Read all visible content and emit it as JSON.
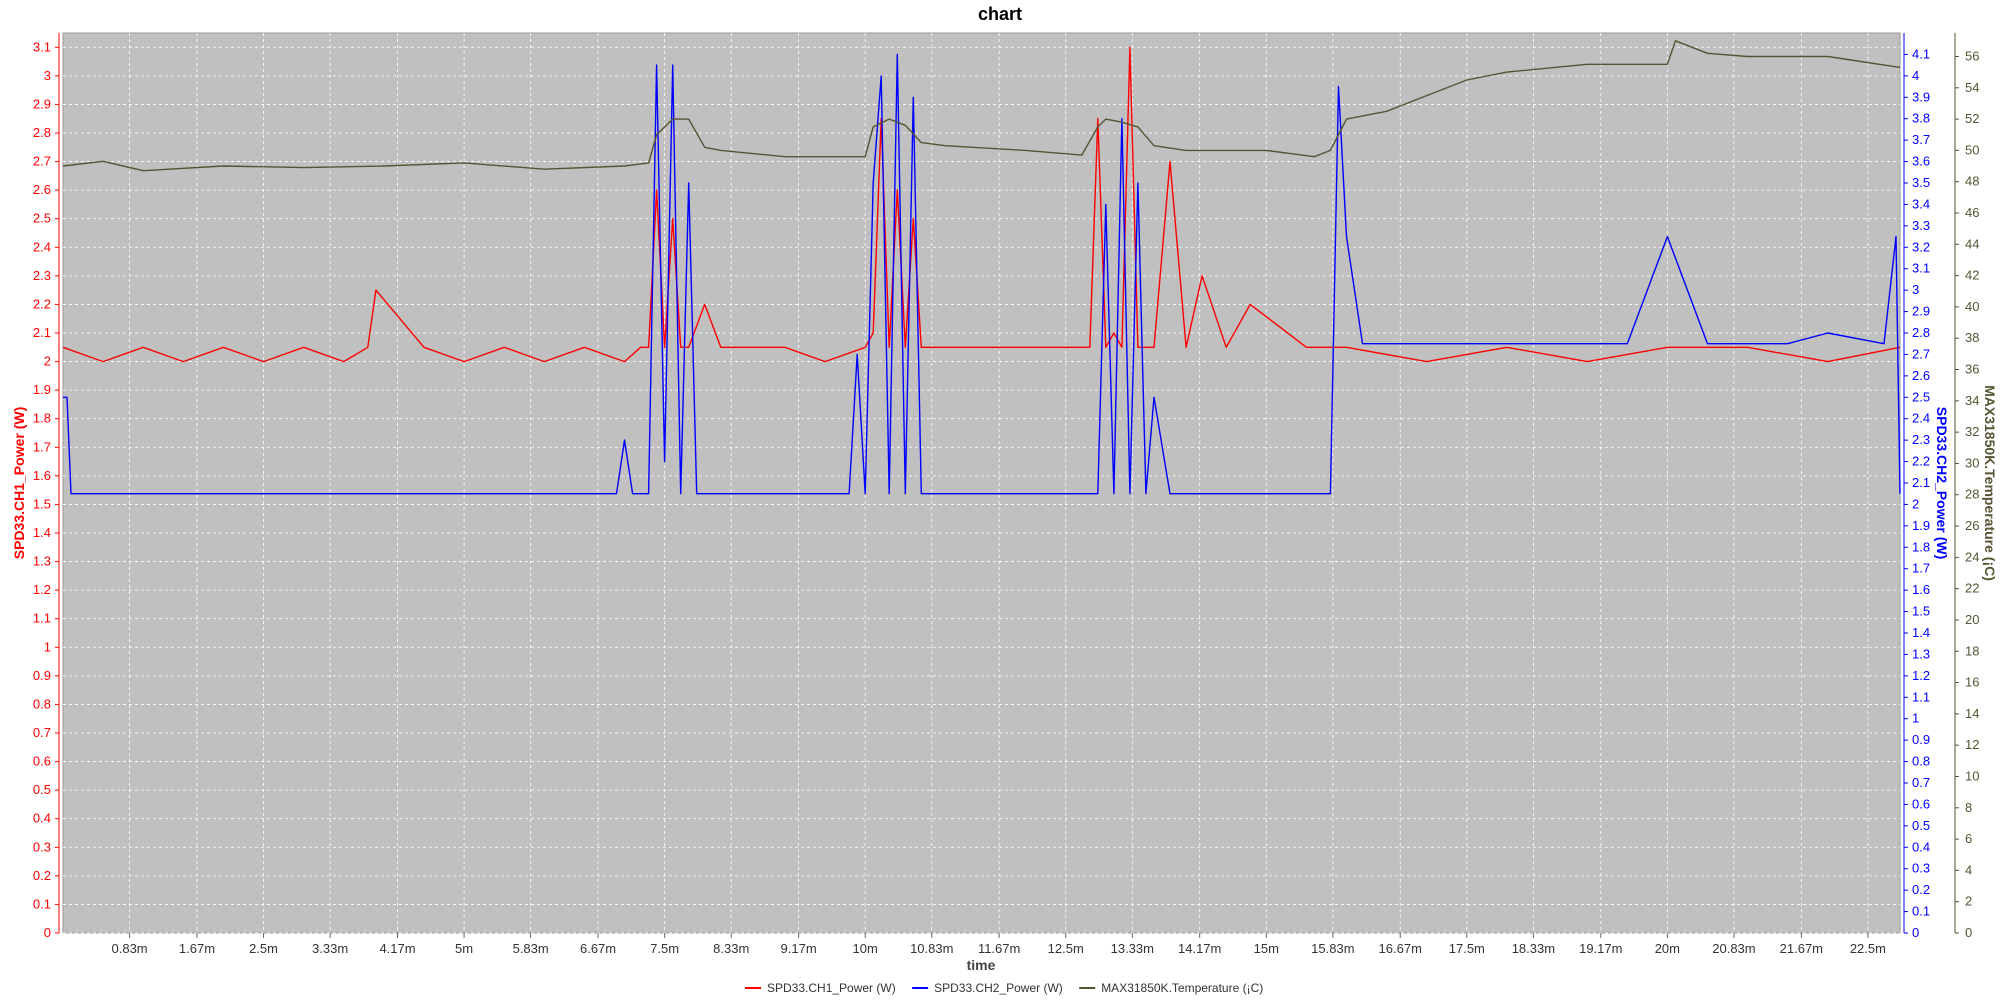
{
  "chart_data": {
    "type": "line",
    "title": "chart",
    "xlabel": "time",
    "x_ticks": [
      "0.83m",
      "1.67m",
      "2.5m",
      "3.33m",
      "4.17m",
      "5m",
      "5.83m",
      "6.67m",
      "7.5m",
      "8.33m",
      "9.17m",
      "10m",
      "10.83m",
      "11.67m",
      "12.5m",
      "13.33m",
      "14.17m",
      "15m",
      "15.83m",
      "16.67m",
      "17.5m",
      "18.33m",
      "19.17m",
      "20m",
      "20.83m",
      "21.67m",
      "22.5m"
    ],
    "x_range_min": [
      0,
      22.9
    ],
    "grid": true,
    "legend_position": "bottom-center",
    "y_axes": [
      {
        "label": "SPD33.CH1_Power (W)",
        "side": "left",
        "color": "#ff0000",
        "range": [
          0,
          3.15
        ],
        "step": 0.1
      },
      {
        "label": "SPD33.CH2_Power (W)",
        "side": "right",
        "color": "#0000ff",
        "range": [
          0,
          4.2
        ],
        "step": 0.1
      },
      {
        "label": "MAX31850K.Temperature (¡C)",
        "side": "right",
        "color": "#555533",
        "range": [
          0,
          57.5
        ],
        "step": 2
      }
    ],
    "series": [
      {
        "name": "SPD33.CH1_Power (W)",
        "color": "#ff0000",
        "axis": 0,
        "x": [
          0,
          0.5,
          1,
          1.5,
          2,
          2.5,
          3,
          3.5,
          3.8,
          3.9,
          4.5,
          5,
          5.5,
          6,
          6.5,
          7,
          7.2,
          7.3,
          7.4,
          7.5,
          7.6,
          7.7,
          7.8,
          8.0,
          8.2,
          9,
          9.5,
          10,
          10.1,
          10.2,
          10.3,
          10.4,
          10.5,
          10.6,
          10.7,
          10.8,
          11,
          12,
          12.7,
          12.8,
          12.9,
          13.0,
          13.1,
          13.2,
          13.3,
          13.4,
          13.5,
          13.6,
          13.8,
          14.0,
          14.2,
          14.5,
          14.8,
          15.5,
          15.8,
          16,
          17,
          18,
          19,
          20,
          21,
          22,
          22.9
        ],
        "y": [
          2.05,
          2.0,
          2.05,
          2.0,
          2.05,
          2.0,
          2.05,
          2.0,
          2.05,
          2.25,
          2.05,
          2.0,
          2.05,
          2.0,
          2.05,
          2.0,
          2.05,
          2.05,
          2.6,
          2.05,
          2.5,
          2.05,
          2.05,
          2.2,
          2.05,
          2.05,
          2.0,
          2.05,
          2.1,
          2.85,
          2.05,
          2.6,
          2.05,
          2.5,
          2.05,
          2.05,
          2.05,
          2.05,
          2.05,
          2.05,
          2.85,
          2.05,
          2.1,
          2.05,
          3.1,
          2.05,
          2.05,
          2.05,
          2.7,
          2.05,
          2.3,
          2.05,
          2.2,
          2.05,
          2.05,
          2.05,
          2.0,
          2.05,
          2.0,
          2.05,
          2.05,
          2.0,
          2.05
        ]
      },
      {
        "name": "SPD33.CH2_Power (W)",
        "color": "#0000ff",
        "axis": 1,
        "x": [
          0,
          0.05,
          0.1,
          0.5,
          1,
          2,
          3,
          4,
          5,
          6,
          6.9,
          7.0,
          7.1,
          7.3,
          7.4,
          7.5,
          7.6,
          7.7,
          7.8,
          7.9,
          8.0,
          9,
          9.8,
          9.9,
          10.0,
          10.1,
          10.2,
          10.3,
          10.4,
          10.5,
          10.6,
          10.7,
          10.8,
          11,
          12,
          12.8,
          12.9,
          13.0,
          13.1,
          13.2,
          13.3,
          13.4,
          13.5,
          13.6,
          13.8,
          14,
          14.5,
          15,
          15.5,
          15.7,
          15.8,
          15.9,
          16.0,
          16.2,
          16.5,
          17,
          17.5,
          18,
          18.5,
          19,
          19.5,
          20,
          20.5,
          21,
          21.5,
          22,
          22.7,
          22.85,
          22.9
        ],
        "y": [
          2.5,
          2.5,
          2.05,
          2.05,
          2.05,
          2.05,
          2.05,
          2.05,
          2.05,
          2.05,
          2.05,
          2.3,
          2.05,
          2.05,
          4.05,
          2.2,
          4.05,
          2.05,
          3.5,
          2.05,
          2.05,
          2.05,
          2.05,
          2.7,
          2.05,
          3.5,
          4.0,
          2.05,
          4.1,
          2.05,
          3.9,
          2.05,
          2.05,
          2.05,
          2.05,
          2.05,
          2.05,
          3.4,
          2.05,
          3.8,
          2.05,
          3.5,
          2.05,
          2.5,
          2.05,
          2.05,
          2.05,
          2.05,
          2.05,
          2.05,
          2.05,
          3.95,
          3.25,
          2.75,
          2.75,
          2.75,
          2.75,
          2.75,
          2.75,
          2.75,
          2.75,
          3.25,
          2.75,
          2.75,
          2.75,
          2.8,
          2.75,
          3.25,
          2.05
        ]
      },
      {
        "name": "MAX31850K.Temperature (¡C)",
        "color": "#555533",
        "axis": 2,
        "x": [
          0,
          0.5,
          1,
          2,
          3,
          4,
          5,
          6,
          7,
          7.3,
          7.4,
          7.6,
          7.8,
          8.0,
          8.2,
          9,
          10,
          10.1,
          10.3,
          10.5,
          10.7,
          11,
          12,
          12.7,
          12.9,
          13.0,
          13.2,
          13.4,
          13.6,
          14,
          15,
          15.6,
          15.8,
          16,
          16.5,
          17,
          17.5,
          18,
          19,
          20,
          20.1,
          20.5,
          21,
          21.5,
          22,
          22.9
        ],
        "y": [
          49,
          49.3,
          48.7,
          49,
          48.9,
          49,
          49.2,
          48.8,
          49,
          49.2,
          51,
          52,
          52,
          50.2,
          50,
          49.6,
          49.6,
          51.5,
          52,
          51.6,
          50.5,
          50.3,
          50,
          49.7,
          51.5,
          52,
          51.8,
          51.5,
          50.3,
          50,
          50,
          49.6,
          50,
          52,
          52.5,
          53.5,
          54.5,
          55,
          55.5,
          55.5,
          57,
          56.2,
          56,
          56,
          56,
          55.3
        ]
      }
    ]
  }
}
